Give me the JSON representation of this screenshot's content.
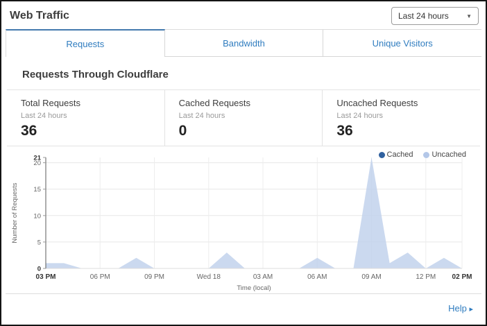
{
  "header": {
    "title": "Web Traffic",
    "time_range_select": {
      "value": "Last 24 hours",
      "caret_icon": "▼"
    }
  },
  "tabs": [
    {
      "label": "Requests",
      "active": true
    },
    {
      "label": "Bandwidth",
      "active": false
    },
    {
      "label": "Unique Visitors",
      "active": false
    }
  ],
  "section": {
    "heading": "Requests Through Cloudflare"
  },
  "stats": [
    {
      "label": "Total Requests",
      "sublabel": "Last 24 hours",
      "value": "36"
    },
    {
      "label": "Cached Requests",
      "sublabel": "Last 24 hours",
      "value": "0"
    },
    {
      "label": "Uncached Requests",
      "sublabel": "Last 24 hours",
      "value": "36"
    }
  ],
  "legend": [
    {
      "label": "Cached",
      "color": "#30619f"
    },
    {
      "label": "Uncached",
      "color": "#b3c7e8"
    }
  ],
  "chart_data": {
    "type": "area",
    "x": [
      "03 PM",
      "04 PM",
      "05 PM",
      "06 PM",
      "07 PM",
      "08 PM",
      "09 PM",
      "10 PM",
      "11 PM",
      "Wed 18",
      "01 AM",
      "02 AM",
      "03 AM",
      "04 AM",
      "05 AM",
      "06 AM",
      "07 AM",
      "08 AM",
      "09 AM",
      "10 AM",
      "11 AM",
      "12 PM",
      "01 PM",
      "02 PM"
    ],
    "series": [
      {
        "name": "Cached",
        "values": [
          0,
          0,
          0,
          0,
          0,
          0,
          0,
          0,
          0,
          0,
          0,
          0,
          0,
          0,
          0,
          0,
          0,
          0,
          0,
          0,
          0,
          0,
          0,
          0
        ]
      },
      {
        "name": "Uncached",
        "values": [
          1,
          1,
          0,
          0,
          0,
          2,
          0,
          0,
          0,
          0,
          3,
          0,
          0,
          0,
          0,
          2,
          0,
          0,
          21,
          1,
          3,
          0,
          2,
          0
        ]
      }
    ],
    "title": "",
    "xlabel": "Time (local)",
    "ylabel": "Number of Requests",
    "ylim": [
      0,
      21
    ],
    "yticks": [
      0,
      5,
      10,
      15,
      20,
      21
    ],
    "xticks": [
      {
        "pos": 0,
        "label": "03 PM",
        "bold": true
      },
      {
        "pos": 3,
        "label": "06 PM",
        "bold": false
      },
      {
        "pos": 6,
        "label": "09 PM",
        "bold": false
      },
      {
        "pos": 9,
        "label": "Wed 18",
        "bold": false
      },
      {
        "pos": 12,
        "label": "03 AM",
        "bold": false
      },
      {
        "pos": 15,
        "label": "06 AM",
        "bold": false
      },
      {
        "pos": 18,
        "label": "09 AM",
        "bold": false
      },
      {
        "pos": 21,
        "label": "12 PM",
        "bold": false
      },
      {
        "pos": 23,
        "label": "02 PM",
        "bold": true
      }
    ],
    "grid": true,
    "legend_position": "top-right"
  },
  "footer": {
    "help_label": "Help",
    "help_arrow": "▸"
  },
  "colors": {
    "accent_blue": "#2f7cbf",
    "active_tab_border": "#4379ae",
    "area_fill": "#c0d1ec",
    "axis_line": "#5a5a5a",
    "gridline": "#e7e7e7"
  }
}
